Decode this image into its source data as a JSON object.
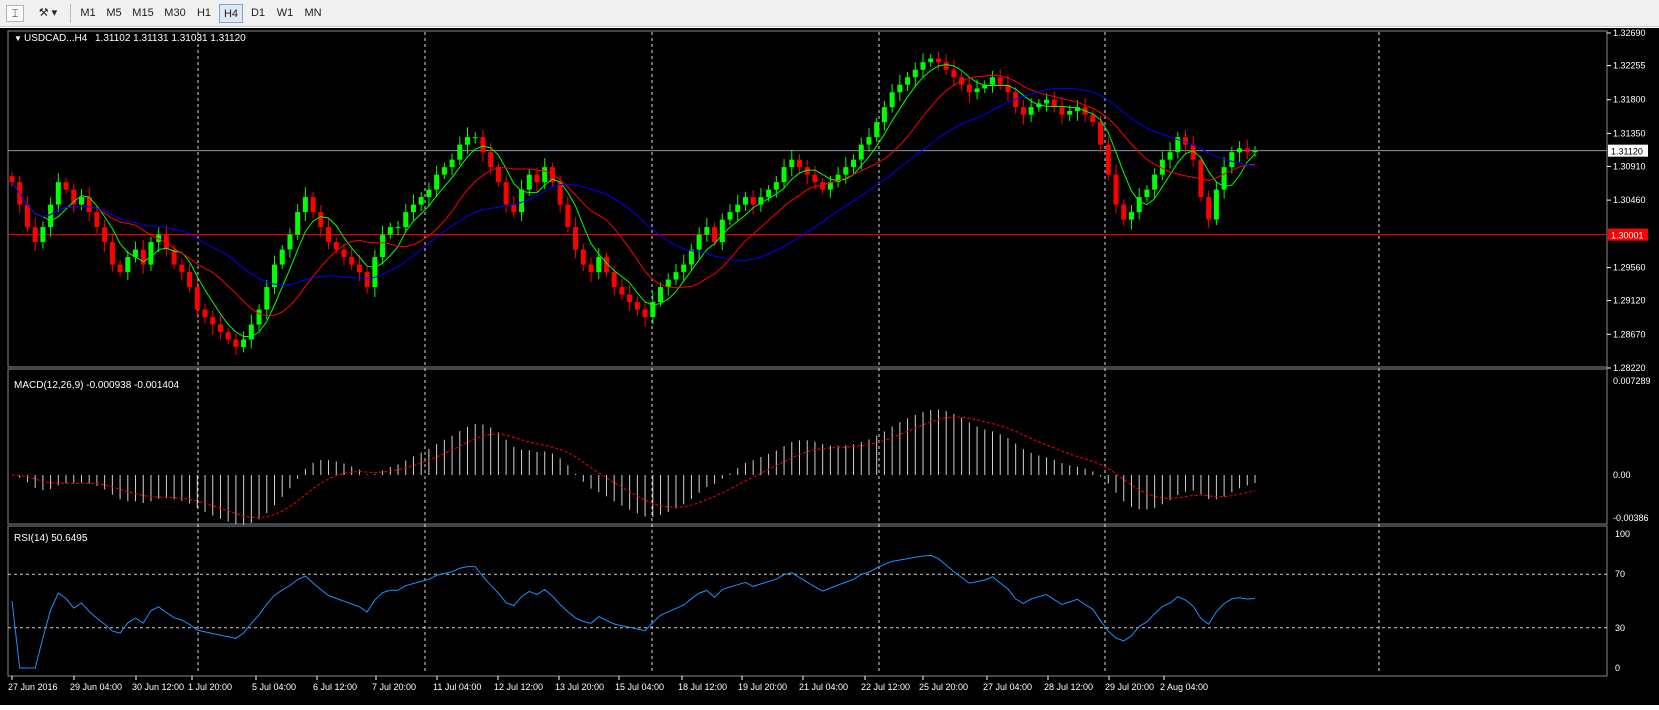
{
  "toolbar": {
    "timeframes": [
      "M1",
      "M5",
      "M15",
      "M30",
      "H1",
      "H4",
      "D1",
      "W1",
      "MN"
    ],
    "active_timeframe": "H4",
    "icons": [
      "crosshair-icon",
      "draw-tools-icon"
    ]
  },
  "chart_data": [
    {
      "type": "candlestick",
      "title": "USDCAD...H4",
      "ohlc_header": "1.31102 1.31131 1.31031 1.31120",
      "yticks": [
        "1.32690",
        "1.32255",
        "1.31800",
        "1.31350",
        "1.30910",
        "1.30460",
        "1.29560",
        "1.29120",
        "1.28670",
        "1.28220"
      ],
      "ylim": [
        1.2822,
        1.3269
      ],
      "xticks": [
        "27 Jun 2016",
        "29 Jun 04:00",
        "30 Jun 12:00",
        "1 Jul 20:00",
        "5 Jul 04:00",
        "6 Jul 12:00",
        "7 Jul 20:00",
        "11 Jul 04:00",
        "12 Jul 12:00",
        "13 Jul 20:00",
        "15 Jul 04:00",
        "18 Jul 12:00",
        "19 Jul 20:00",
        "21 Jul 04:00",
        "22 Jul 12:00",
        "25 Jul 20:00",
        "27 Jul 04:00",
        "28 Jul 12:00",
        "29 Jul 20:00",
        "2 Aug 04:00"
      ],
      "current_price_label": "1.31120",
      "level_label": "1.30001",
      "colors": {
        "up": "#00ff00",
        "down": "#ff0000",
        "ma_fast": "#00ff00",
        "ma_mid": "#ff0000",
        "ma_slow": "#0000ff",
        "bid_line": "#8a99b0",
        "level_line": "#ff0000",
        "grid": "#ffffff",
        "axis_text": "#ffffff"
      },
      "grid": true,
      "closes": [
        1.307,
        1.304,
        1.301,
        1.299,
        1.301,
        1.304,
        1.307,
        1.306,
        1.304,
        1.305,
        1.303,
        1.301,
        1.299,
        1.296,
        1.295,
        1.297,
        1.298,
        1.296,
        1.299,
        1.3,
        1.298,
        1.296,
        1.295,
        1.293,
        1.29,
        1.289,
        1.288,
        1.287,
        1.286,
        1.285,
        1.286,
        1.288,
        1.29,
        1.293,
        1.296,
        1.298,
        1.3,
        1.303,
        1.305,
        1.303,
        1.301,
        1.299,
        1.298,
        1.297,
        1.296,
        1.295,
        1.293,
        1.297,
        1.3,
        1.301,
        1.301,
        1.303,
        1.304,
        1.305,
        1.306,
        1.308,
        1.309,
        1.31,
        1.312,
        1.313,
        1.313,
        1.311,
        1.309,
        1.307,
        1.304,
        1.303,
        1.306,
        1.308,
        1.307,
        1.309,
        1.307,
        1.304,
        1.301,
        1.298,
        1.296,
        1.295,
        1.297,
        1.295,
        1.293,
        1.292,
        1.291,
        1.29,
        1.289,
        1.291,
        1.293,
        1.294,
        1.295,
        1.296,
        1.298,
        1.3,
        1.301,
        1.299,
        1.302,
        1.303,
        1.304,
        1.305,
        1.304,
        1.305,
        1.306,
        1.307,
        1.309,
        1.31,
        1.309,
        1.308,
        1.307,
        1.306,
        1.307,
        1.308,
        1.309,
        1.31,
        1.312,
        1.313,
        1.315,
        1.317,
        1.319,
        1.32,
        1.321,
        1.322,
        1.323,
        1.3235,
        1.323,
        1.322,
        1.321,
        1.32,
        1.319,
        1.3195,
        1.32,
        1.321,
        1.32,
        1.319,
        1.317,
        1.316,
        1.317,
        1.3175,
        1.318,
        1.317,
        1.316,
        1.3165,
        1.317,
        1.316,
        1.315,
        1.312,
        1.308,
        1.304,
        1.302,
        1.303,
        1.305,
        1.306,
        1.308,
        1.31,
        1.311,
        1.313,
        1.312,
        1.31,
        1.305,
        1.302,
        1.306,
        1.309,
        1.311,
        1.3115,
        1.311,
        1.3112
      ],
      "macd_title": "MACD(12,26,9) -0.000938 -0.001404",
      "macd_yticks": [
        "0.007289",
        "0.00",
        "-0.00386"
      ],
      "macd_ylim": [
        -0.00386,
        0.007289
      ],
      "rsi_title": "RSI(14) 50.6495",
      "rsi_yticks": [
        "100",
        "70",
        "30",
        "0"
      ],
      "rsi_ylim": [
        0,
        100
      ],
      "rsi_levels": [
        70,
        30
      ],
      "rsi_color": "#1e90ff"
    }
  ]
}
